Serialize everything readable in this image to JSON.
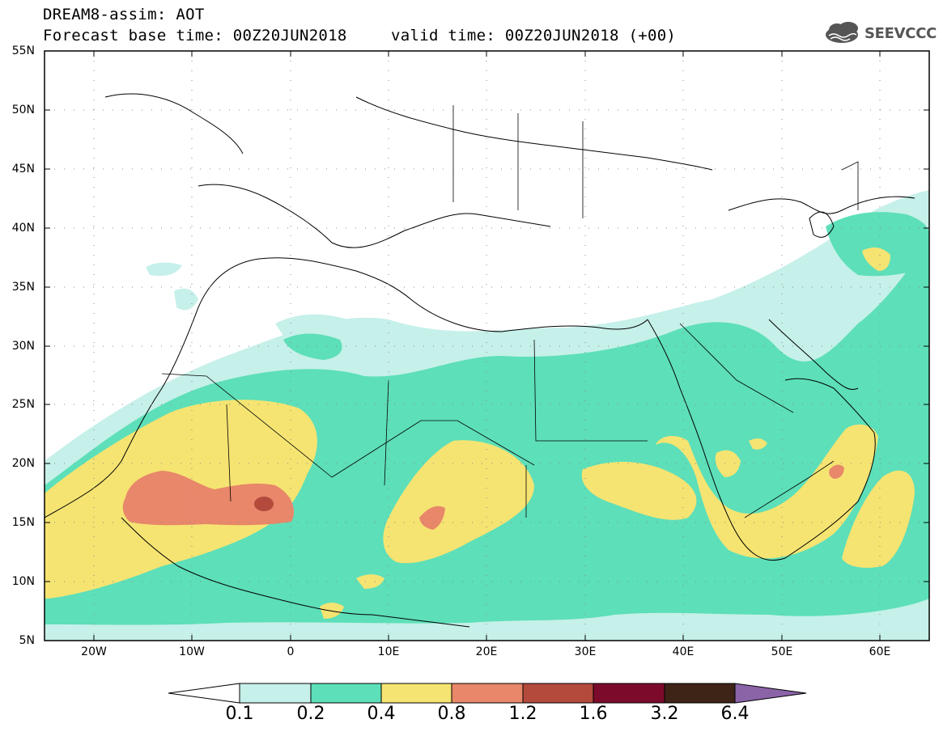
{
  "header": {
    "line1": "DREAM8-assim: AOT",
    "line2": "Forecast base time: 00Z20JUN2018",
    "line3": "valid time: 00Z20JUN2018 (+00)",
    "logo_text": "SEEVCCC",
    "logo_icon": "cloud-icon"
  },
  "map": {
    "lat_labels": [
      "55N",
      "50N",
      "45N",
      "40N",
      "35N",
      "30N",
      "25N",
      "20N",
      "15N",
      "10N",
      "5N"
    ],
    "lon_labels": [
      "20W",
      "10W",
      "0",
      "10E",
      "20E",
      "30E",
      "40E",
      "50E",
      "60E"
    ],
    "lat_range": [
      5,
      55
    ],
    "lon_range": [
      -25,
      65
    ],
    "grid": "dotted"
  },
  "colorbar": {
    "labels": [
      "0.1",
      "0.2",
      "0.4",
      "0.8",
      "1.2",
      "1.6",
      "3.2",
      "6.4"
    ],
    "colors": [
      "#ffffff",
      "#c6f0ea",
      "#5ddfb9",
      "#f5e472",
      "#e8876a",
      "#b44a3c",
      "#7c0b2b",
      "#3e2317",
      "#8b64a8"
    ]
  }
}
